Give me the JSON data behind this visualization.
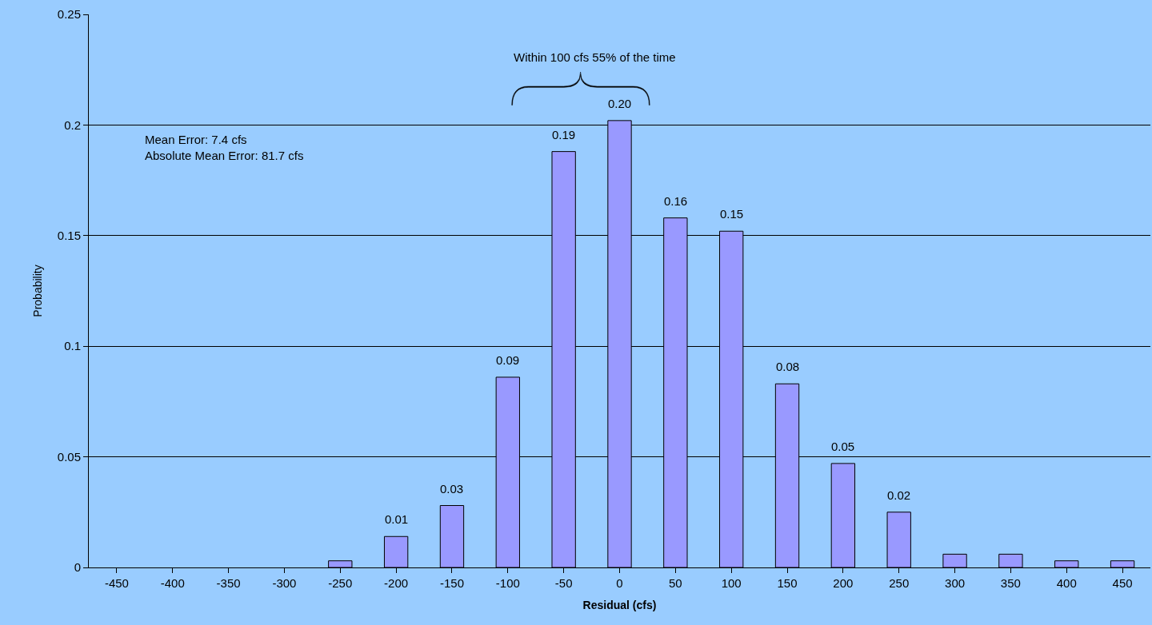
{
  "chart_data": {
    "type": "bar",
    "categories": [
      "-450",
      "-400",
      "-350",
      "-300",
      "-250",
      "-200",
      "-150",
      "-100",
      "-50",
      "0",
      "50",
      "100",
      "150",
      "200",
      "250",
      "300",
      "350",
      "400",
      "450"
    ],
    "values": [
      0,
      0,
      0,
      0,
      0.003,
      0.014,
      0.028,
      0.086,
      0.188,
      0.202,
      0.158,
      0.152,
      0.083,
      0.047,
      0.025,
      0.006,
      0.006,
      0.003,
      0.003
    ],
    "value_labels": [
      null,
      null,
      null,
      null,
      null,
      "0.01",
      "0.03",
      "0.09",
      "0.19",
      "0.20",
      "0.16",
      "0.15",
      "0.08",
      "0.05",
      "0.02",
      null,
      null,
      null,
      null
    ],
    "color": "#9999ff",
    "xlabel": "Residual (cfs)",
    "ylabel": "Probability",
    "ylim": [
      0,
      0.25
    ],
    "yticks": [
      0,
      0.05,
      0.1,
      0.15,
      0.2,
      0.25
    ],
    "grid": "y",
    "legend": false,
    "annotations": [
      "Within 100 cfs 55% of the time",
      "Mean Error: 7.4 cfs\nAbsolute Mean Error: 81.7 cfs"
    ]
  }
}
